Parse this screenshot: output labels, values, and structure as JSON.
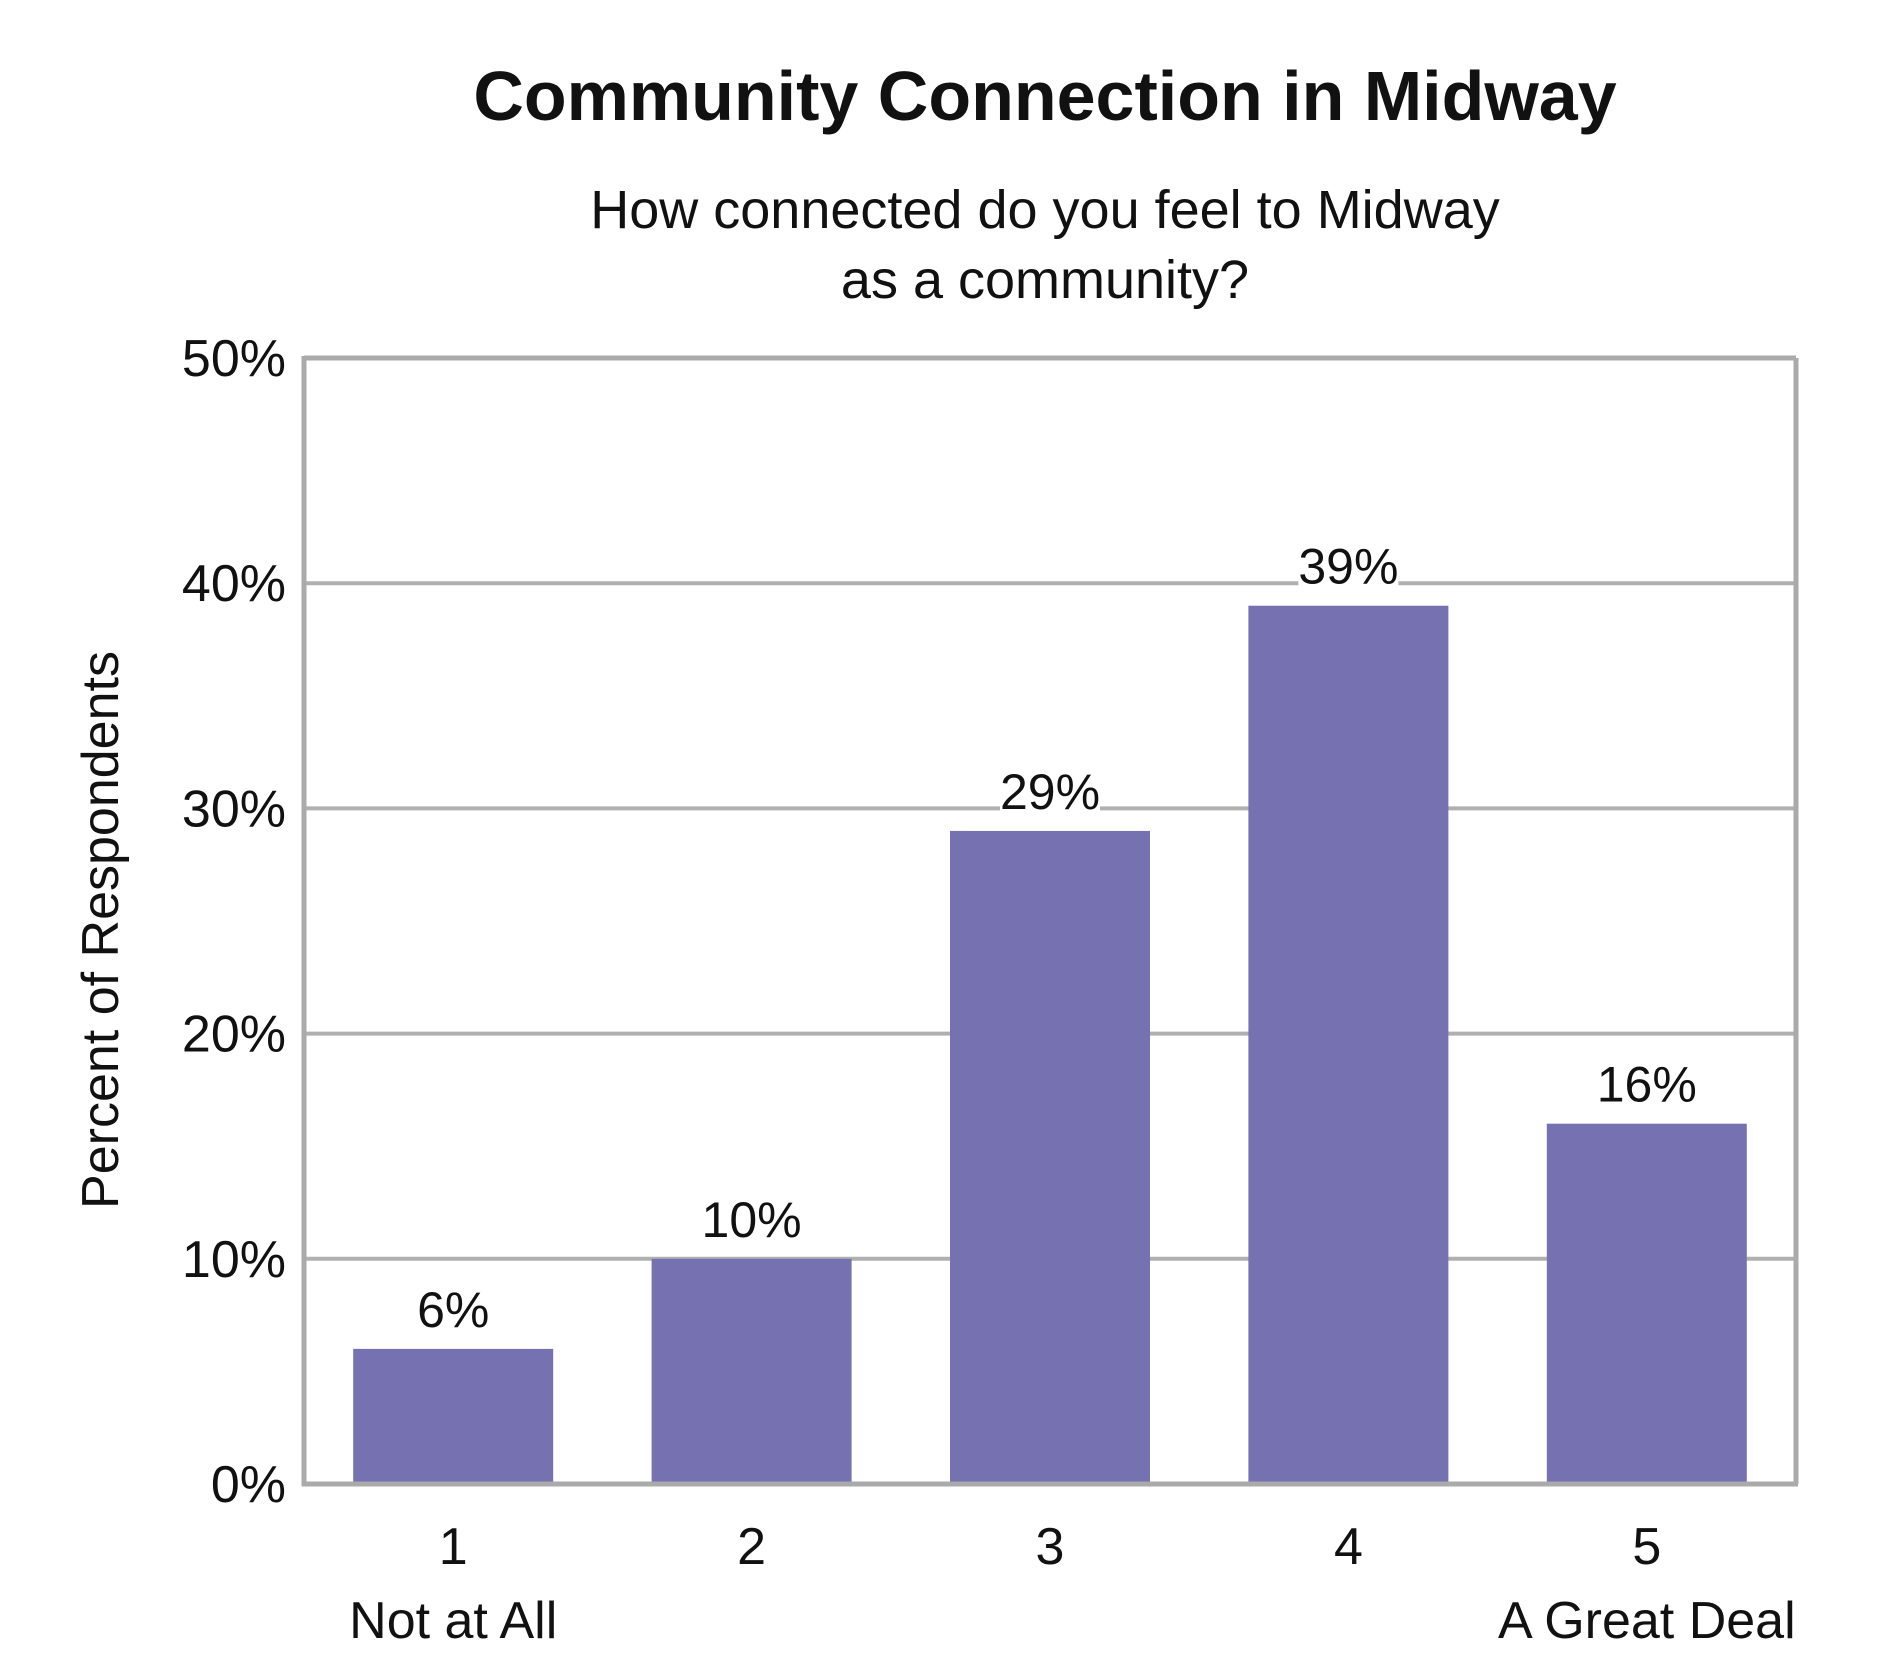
{
  "chart_data": {
    "type": "bar",
    "title": "Community Connection in Midway",
    "subtitle_lines": [
      "How connected do you feel to Midway",
      "as a community?"
    ],
    "ylabel": "Percent of Respondents",
    "xlabel": "",
    "categories": [
      "1",
      "2",
      "3",
      "4",
      "5"
    ],
    "category_sublabels": [
      "Not at All",
      "",
      "",
      "",
      "A Great Deal"
    ],
    "values": [
      6,
      10,
      29,
      39,
      16
    ],
    "data_labels": [
      "6%",
      "10%",
      "29%",
      "39%",
      "16%"
    ],
    "ylim": [
      0,
      50
    ],
    "yticks": [
      0,
      10,
      20,
      30,
      40,
      50
    ],
    "ytick_labels": [
      "0%",
      "10%",
      "20%",
      "30%",
      "40%",
      "50%"
    ],
    "grid": true,
    "legend": "none",
    "colors": {
      "bar": "#7672b2",
      "grid": "#b0b0b0",
      "frame": "#aaaaaa",
      "text": "#111111"
    }
  }
}
